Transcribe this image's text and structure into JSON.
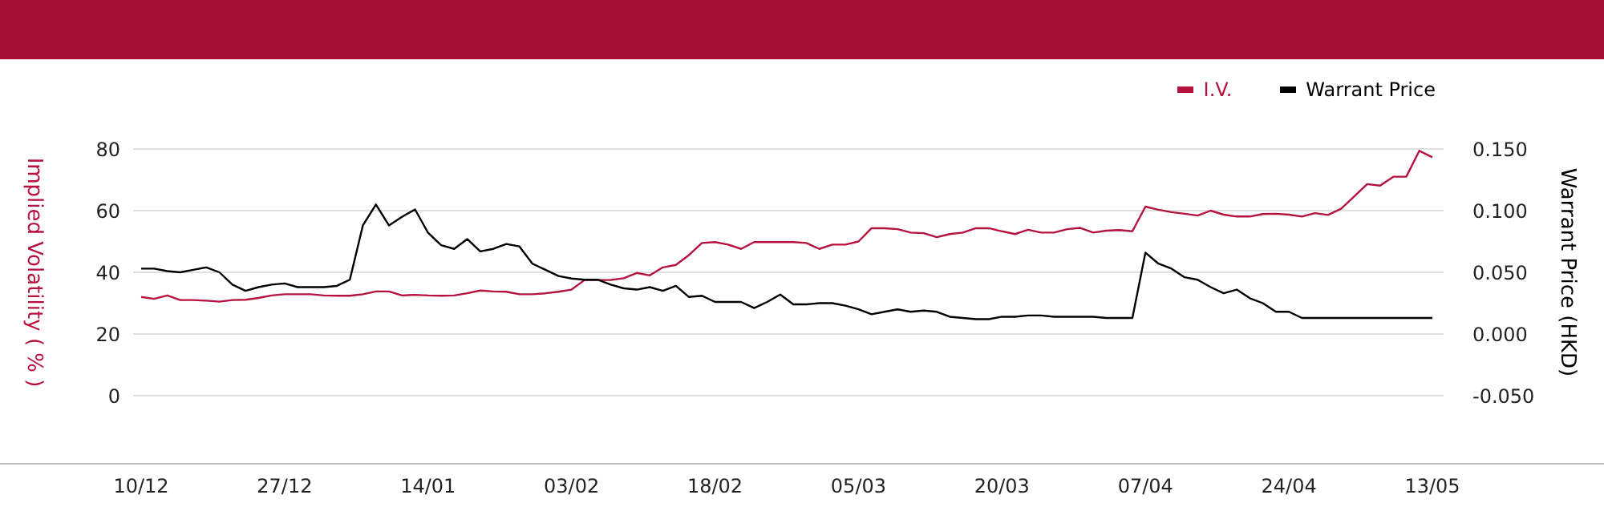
{
  "chart_data": {
    "type": "line",
    "categories": [
      "10/12",
      null,
      null,
      null,
      null,
      null,
      null,
      null,
      null,
      null,
      null,
      "27/12",
      null,
      null,
      null,
      null,
      null,
      null,
      null,
      null,
      null,
      null,
      "14/01",
      null,
      null,
      null,
      null,
      null,
      null,
      null,
      null,
      null,
      null,
      "03/02",
      null,
      null,
      null,
      null,
      null,
      null,
      null,
      null,
      null,
      null,
      "18/02",
      null,
      null,
      null,
      null,
      null,
      null,
      null,
      null,
      null,
      null,
      "05/03",
      null,
      null,
      null,
      null,
      null,
      null,
      null,
      null,
      null,
      null,
      "20/03",
      null,
      null,
      null,
      null,
      null,
      null,
      null,
      null,
      null,
      null,
      "07/04",
      null,
      null,
      null,
      null,
      null,
      null,
      null,
      null,
      null,
      null,
      "24/04",
      null,
      null,
      null,
      null,
      null,
      null,
      null,
      null,
      null,
      null,
      "13/05"
    ],
    "series": [
      {
        "name": "I.V.",
        "color": "#b5123f",
        "values": [
          32,
          31.4,
          32.5,
          31,
          31,
          30.8,
          30.5,
          31,
          31.1,
          31.7,
          32.5,
          32.9,
          32.9,
          32.9,
          32.5,
          32.4,
          32.4,
          32.9,
          33.8,
          33.8,
          32.5,
          32.7,
          32.5,
          32.4,
          32.5,
          33.2,
          34.1,
          33.8,
          33.7,
          32.9,
          32.9,
          33.2,
          33.7,
          34.4,
          37.5,
          37.5,
          37.5,
          38.1,
          39.8,
          39,
          41.6,
          42.4,
          45.6,
          49.5,
          49.8,
          49,
          47.6,
          49.8,
          49.8,
          49.8,
          49.8,
          49.5,
          47.6,
          49,
          49,
          50,
          54.3,
          54.3,
          54,
          52.9,
          52.7,
          51.4,
          52.4,
          52.9,
          54.3,
          54.3,
          53.3,
          52.4,
          53.8,
          52.9,
          52.9,
          54,
          54.4,
          52.9,
          53.5,
          53.7,
          53.3,
          61.3,
          60.3,
          59.5,
          59,
          58.4,
          60,
          58.7,
          58.1,
          58.1,
          58.9,
          59,
          58.7,
          58.1,
          59.2,
          58.6,
          60.6,
          64.6,
          68.6,
          68.1,
          71,
          71,
          79.4,
          77.3
        ]
      },
      {
        "name": "Warrant Price",
        "color": "#000000",
        "axis": "y2",
        "values": [
          0.053,
          0.053,
          0.051,
          0.05,
          0.052,
          0.054,
          0.05,
          0.04,
          0.035,
          0.038,
          0.04,
          0.041,
          0.038,
          0.038,
          0.038,
          0.039,
          0.044,
          0.088,
          0.105,
          0.088,
          0.095,
          0.101,
          0.082,
          0.072,
          0.069,
          0.077,
          0.067,
          0.069,
          0.073,
          0.071,
          0.057,
          0.052,
          0.047,
          0.045,
          0.044,
          0.044,
          0.04,
          0.037,
          0.036,
          0.038,
          0.035,
          0.039,
          0.03,
          0.031,
          0.026,
          0.026,
          0.026,
          0.021,
          0.026,
          0.032,
          0.024,
          0.024,
          0.025,
          0.025,
          0.023,
          0.02,
          0.016,
          0.018,
          0.02,
          0.018,
          0.019,
          0.018,
          0.014,
          0.013,
          0.012,
          0.012,
          0.014,
          0.014,
          0.015,
          0.015,
          0.014,
          0.014,
          0.014,
          0.014,
          0.013,
          0.013,
          0.013,
          0.066,
          0.057,
          0.053,
          0.046,
          0.044,
          0.038,
          0.033,
          0.036,
          0.029,
          0.025,
          0.018,
          0.018,
          0.013,
          0.013,
          0.013,
          0.013,
          0.013,
          0.013,
          0.013,
          0.013,
          0.013,
          0.013,
          0.013
        ]
      }
    ],
    "ylabel": "Implied Volatility ( % )",
    "y2label": "Warrant Price (HKD)",
    "ylim": [
      0,
      80
    ],
    "yticks": [
      0,
      20,
      40,
      60,
      80
    ],
    "y2lim": [
      -0.05,
      0.15
    ],
    "y2ticks": [
      {
        "value": -0.05,
        "label": "-0.050"
      },
      {
        "value": 0,
        "label": "0.000"
      },
      {
        "value": 0.05,
        "label": "0.050"
      },
      {
        "value": 0.1,
        "label": "0.100"
      },
      {
        "value": 0.15,
        "label": "0.150"
      }
    ],
    "grid": "y",
    "legend": "top right",
    "marker": "none",
    "line_style": "solid"
  }
}
